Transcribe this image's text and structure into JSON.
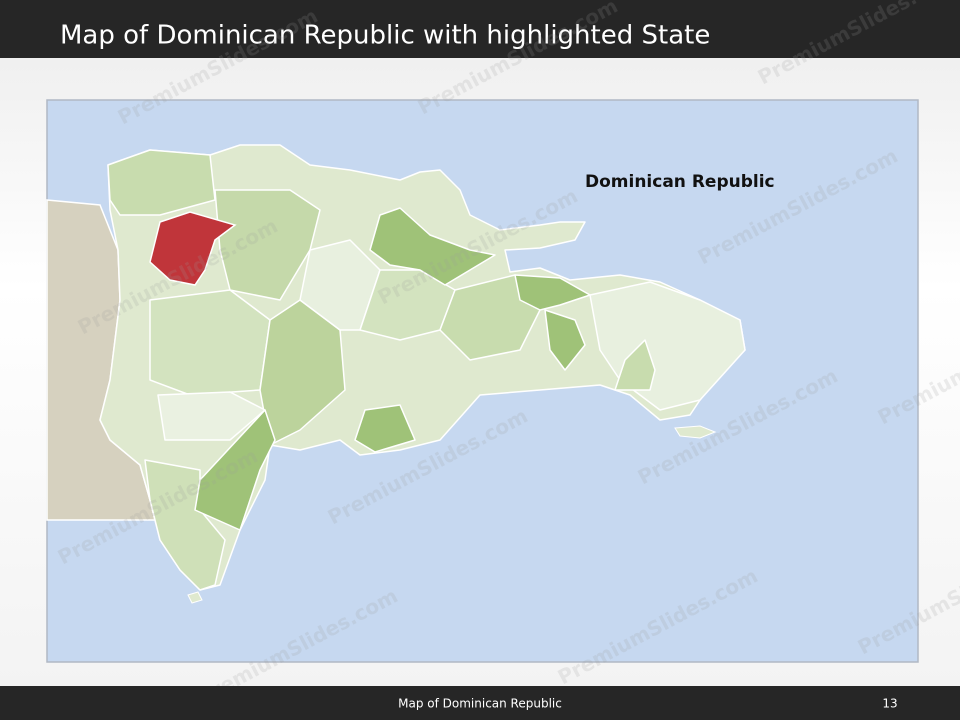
{
  "header": {
    "title": "Map of Dominican Republic with highlighted State"
  },
  "map": {
    "label": "Dominican Republic"
  },
  "footer": {
    "text": "Map of Dominican Republic",
    "page": "13"
  },
  "watermark": "PremiumSlides.com"
}
